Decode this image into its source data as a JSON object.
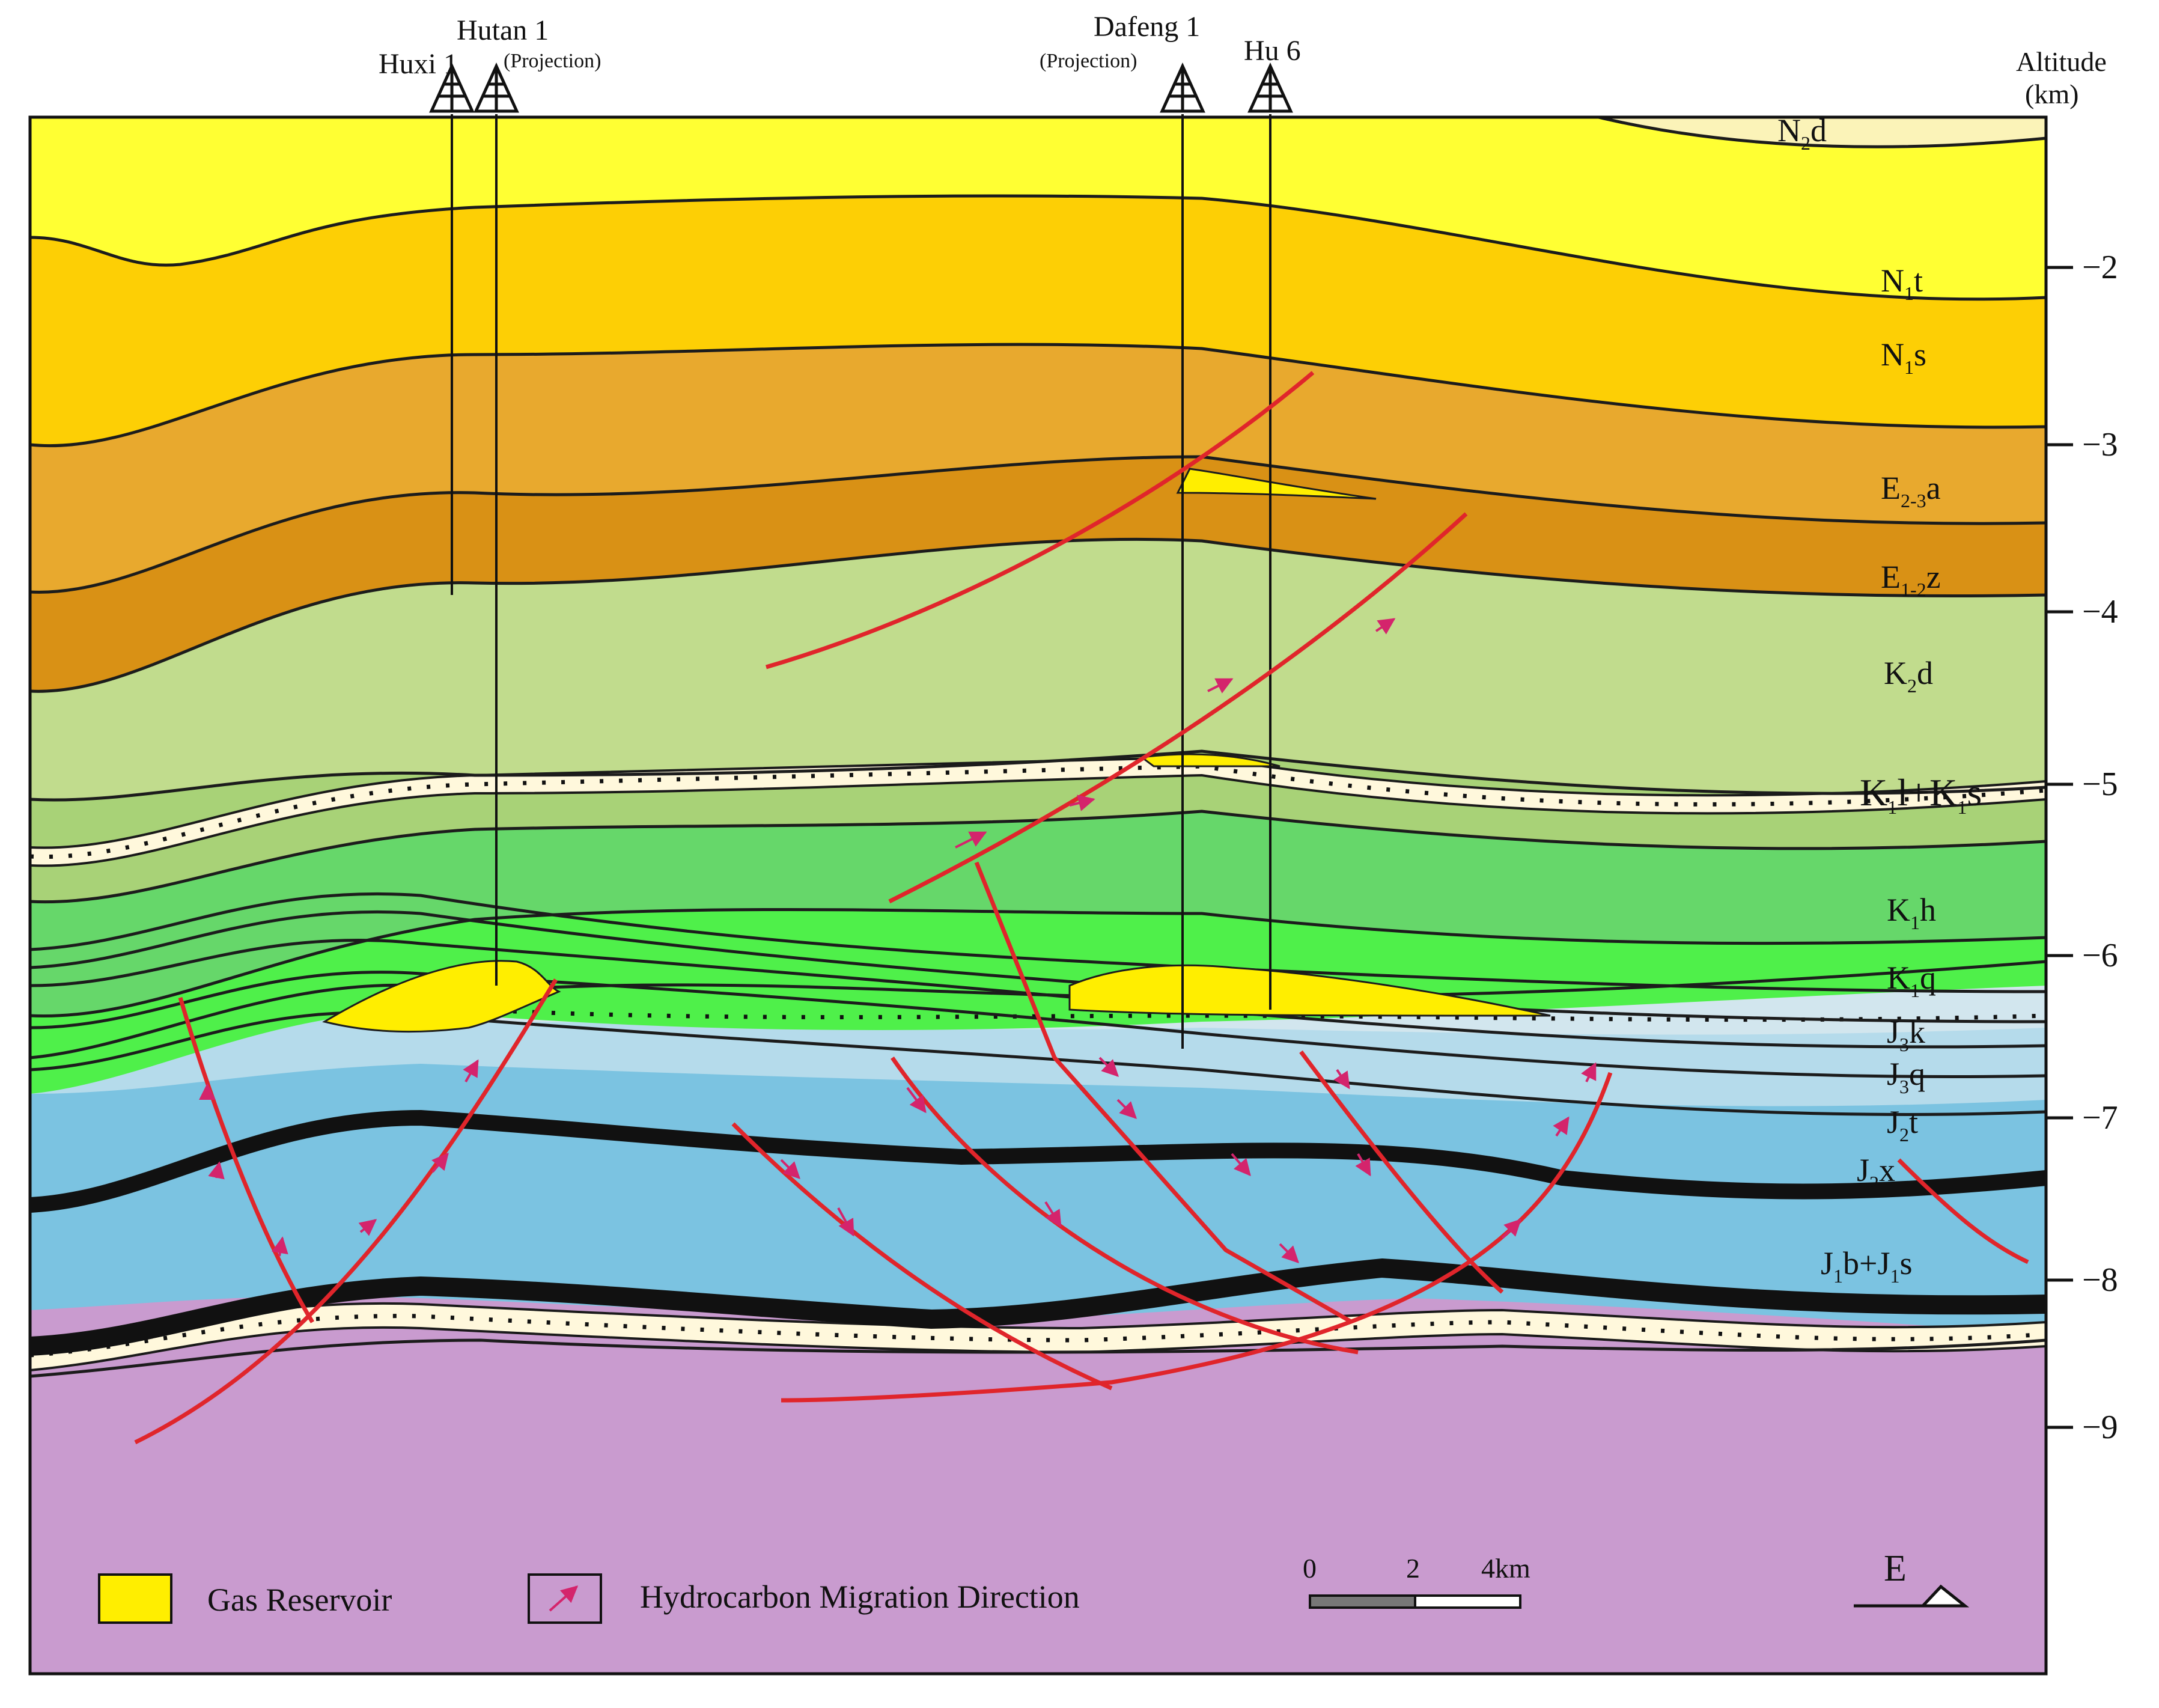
{
  "wells": [
    {
      "name": "Huxi 1",
      "note": ""
    },
    {
      "name": "Hutan 1",
      "note": "(Projection)"
    },
    {
      "name": "Dafeng 1",
      "note": "(Projection)"
    },
    {
      "name": "Hu 6",
      "note": ""
    }
  ],
  "axis": {
    "title": "Altitude",
    "unit": "(km)",
    "ticks": [
      "-2",
      "-3",
      "-4",
      "-5",
      "-6",
      "-7",
      "-8",
      "-9"
    ]
  },
  "formations": [
    {
      "base": "N",
      "sub": "2",
      "suffix": "d"
    },
    {
      "base": "N",
      "sub": "1",
      "suffix": "t"
    },
    {
      "base": "N",
      "sub": "1",
      "suffix": "s"
    },
    {
      "base": "E",
      "sub": "2-3",
      "suffix": "a"
    },
    {
      "base": "E",
      "sub": "1-2",
      "suffix": "z"
    },
    {
      "base": "K",
      "sub": "2",
      "suffix": "d"
    },
    {
      "base": "K",
      "sub": "1",
      "suffix": "l+K",
      "sub2": "1",
      "suffix2": "s"
    },
    {
      "base": "K",
      "sub": "1",
      "suffix": "h"
    },
    {
      "base": "K",
      "sub": "1",
      "suffix": "q"
    },
    {
      "base": "J",
      "sub": "3",
      "suffix": "k"
    },
    {
      "base": "J",
      "sub": "3",
      "suffix": "q"
    },
    {
      "base": "J",
      "sub": "2",
      "suffix": "t"
    },
    {
      "base": "J",
      "sub": "2",
      "suffix": "x"
    },
    {
      "base": "J",
      "sub": "1",
      "suffix": "b+J",
      "sub2": "1",
      "suffix2": "s"
    }
  ],
  "legend": {
    "gas": "Gas Reservoir",
    "migration": "Hydrocarbon Migration Direction"
  },
  "scale_bar": {
    "labels": [
      "0",
      "2",
      "4km"
    ]
  },
  "direction": "E",
  "colors": {
    "fault": "#e0252b",
    "arrow": "#d4246c",
    "gas": "#ffee00",
    "basement": "#c99bcf"
  }
}
